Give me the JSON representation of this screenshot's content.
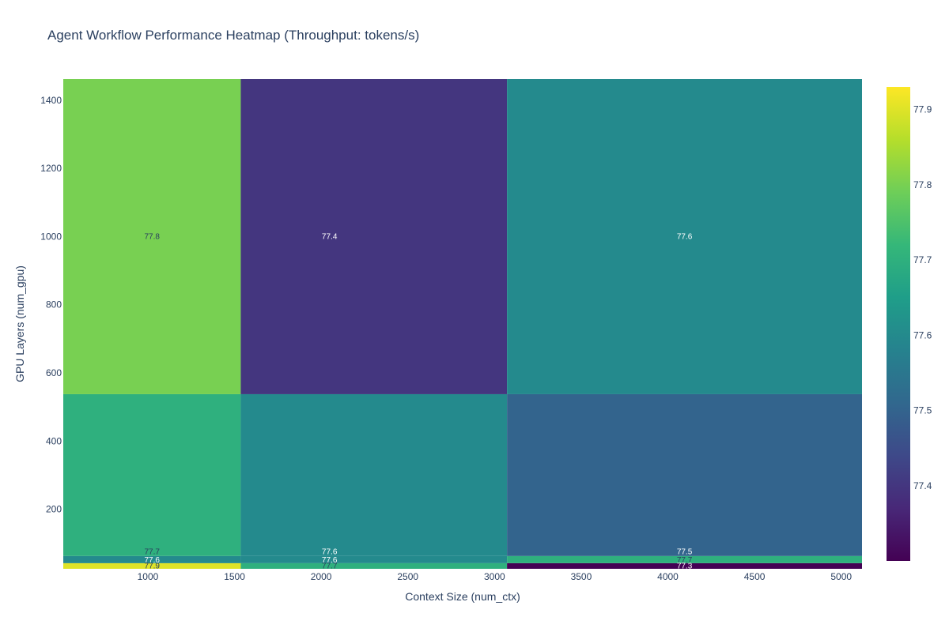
{
  "chart_data": {
    "type": "heatmap",
    "title": "Agent Workflow Performance Heatmap (Throughput: tokens/s)",
    "xlabel": "Context Size (num_ctx)",
    "ylabel": "GPU Layers (num_gpu)",
    "x": [
      1024,
      2048,
      4096
    ],
    "x_edges": [
      512,
      1536,
      3072,
      5120
    ],
    "y": [
      33,
      50,
      75,
      1000
    ],
    "y_edges": [
      25,
      41.5,
      62.5,
      537.5,
      1462.5
    ],
    "xlim": [
      512,
      5120
    ],
    "ylim": [
      25,
      1462.5
    ],
    "x_ticks": [
      1000,
      1500,
      2000,
      2500,
      3000,
      3500,
      4000,
      4500,
      5000
    ],
    "y_ticks": [
      200,
      400,
      600,
      800,
      1000,
      1200,
      1400
    ],
    "z": [
      [
        77.9,
        77.7,
        77.3
      ],
      [
        77.6,
        77.6,
        77.7
      ],
      [
        77.7,
        77.6,
        77.5
      ],
      [
        77.8,
        77.4,
        77.6
      ]
    ],
    "labels": [
      [
        "77.9",
        "77.7",
        "77.3"
      ],
      [
        "77.6",
        "77.6",
        "77.7"
      ],
      [
        "77.7",
        "77.6",
        "77.5"
      ],
      [
        "77.8",
        "77.4",
        "77.6"
      ]
    ],
    "zmin": 77.3,
    "zmax": 77.93,
    "colorscale": "Viridis",
    "colorbar": {
      "ticks": [
        77.4,
        77.5,
        77.6,
        77.7,
        77.8,
        77.9
      ],
      "tick_labels": [
        "77.4",
        "77.5",
        "77.6",
        "77.7",
        "77.8",
        "77.9"
      ],
      "placement": "right"
    },
    "grid": false
  }
}
